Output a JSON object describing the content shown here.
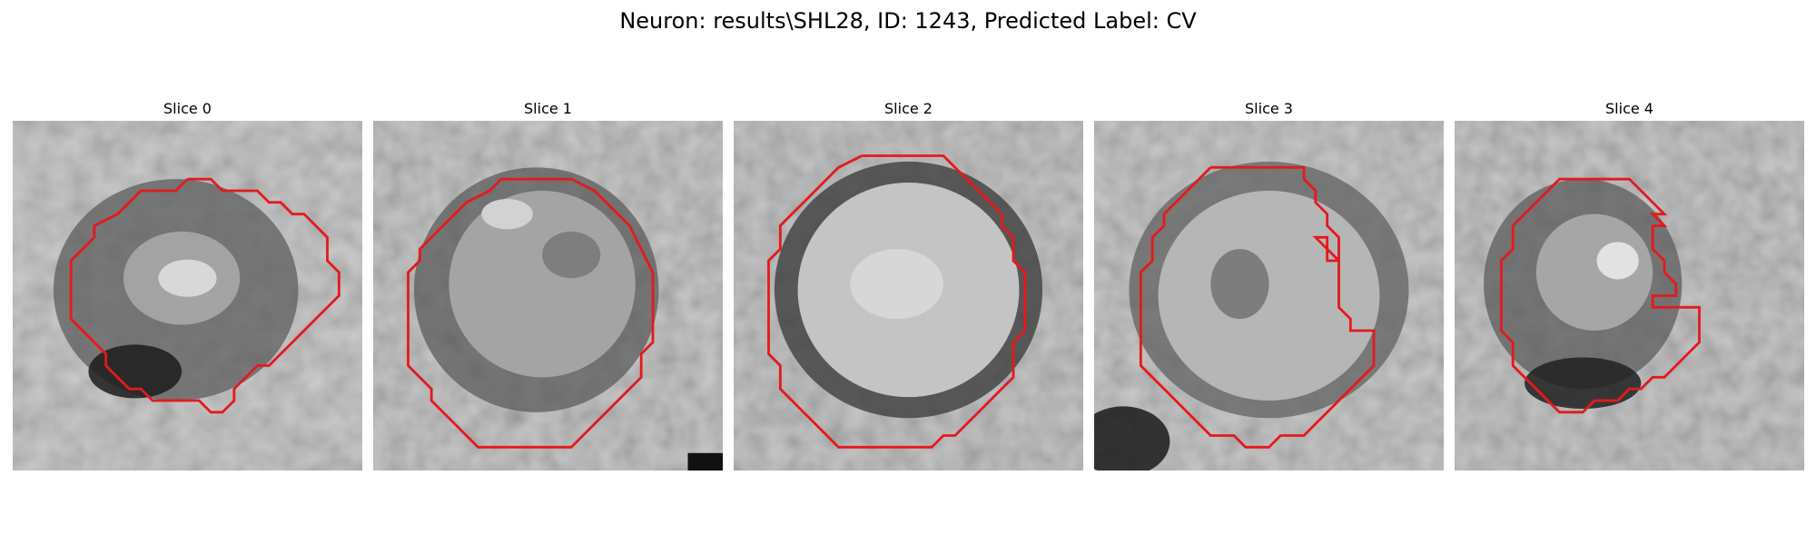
{
  "figure": {
    "title": "Neuron: results\\SHL28, ID: 1243, Predicted Label: CV",
    "contour_color": "#e31a1c"
  },
  "panels": [
    {
      "title": "Slice 0"
    },
    {
      "title": "Slice 1"
    },
    {
      "title": "Slice 2"
    },
    {
      "title": "Slice 3"
    },
    {
      "title": "Slice 4"
    }
  ]
}
